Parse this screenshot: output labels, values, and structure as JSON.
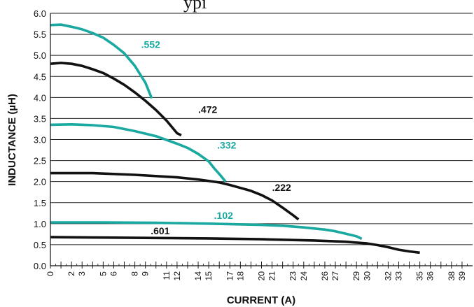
{
  "cut_title": "ypi",
  "chart_data": {
    "type": "line",
    "title": "",
    "xlabel": "CURRENT (A)",
    "ylabel": "INDUCTANCE (µH)",
    "xlim": [
      0,
      40
    ],
    "ylim": [
      0,
      6.0
    ],
    "grid": true,
    "yticks": [
      "0.0",
      "0.5",
      "1.0",
      "1.5",
      "2.0",
      "2.5",
      "3.0",
      "3.5",
      "4.0",
      "4.5",
      "5.0",
      "5.5",
      "6.0"
    ],
    "xticks": [
      "0",
      "1",
      "2",
      "3",
      "4",
      "5",
      "6",
      "7",
      "8",
      "9",
      "10",
      "11",
      "12",
      "13",
      "14",
      "15",
      "16",
      "17",
      "18",
      "19",
      "20",
      "21",
      "22",
      "23",
      "24",
      "25",
      "26",
      "27",
      "28",
      "29",
      "30",
      "31",
      "32",
      "33",
      "34",
      "35",
      "36",
      "37",
      "38",
      "39"
    ],
    "xtick_labels": [
      "0",
      "2",
      "3",
      "5",
      "6",
      "8",
      "9",
      "11",
      "12",
      "14",
      "15",
      "17",
      "18",
      "20",
      "21",
      "23",
      "24",
      "26",
      "27",
      "29",
      "30",
      "32",
      "33",
      "35",
      "36",
      "38",
      "39"
    ],
    "series": [
      {
        "name": ".552",
        "color": "#1aa9a0",
        "label_at": [
          8.6,
          5.18
        ],
        "points": [
          [
            0,
            5.72
          ],
          [
            1,
            5.73
          ],
          [
            2,
            5.68
          ],
          [
            3,
            5.62
          ],
          [
            4,
            5.53
          ],
          [
            5,
            5.42
          ],
          [
            6,
            5.25
          ],
          [
            7,
            5.05
          ],
          [
            8,
            4.75
          ],
          [
            9,
            4.35
          ],
          [
            9.6,
            3.98
          ]
        ]
      },
      {
        "name": ".472",
        "color": "#111111",
        "label_at": [
          14.0,
          3.63
        ],
        "points": [
          [
            0,
            4.8
          ],
          [
            1,
            4.82
          ],
          [
            2,
            4.8
          ],
          [
            3,
            4.75
          ],
          [
            4,
            4.67
          ],
          [
            5,
            4.58
          ],
          [
            6,
            4.45
          ],
          [
            7,
            4.3
          ],
          [
            8,
            4.12
          ],
          [
            9,
            3.92
          ],
          [
            10,
            3.7
          ],
          [
            11,
            3.45
          ],
          [
            12,
            3.15
          ],
          [
            12.4,
            3.1
          ]
        ]
      },
      {
        "name": ".332",
        "color": "#1aa9a0",
        "label_at": [
          15.8,
          2.78
        ],
        "points": [
          [
            0,
            3.35
          ],
          [
            2,
            3.36
          ],
          [
            4,
            3.34
          ],
          [
            6,
            3.3
          ],
          [
            8,
            3.2
          ],
          [
            10,
            3.08
          ],
          [
            12,
            2.9
          ],
          [
            13,
            2.8
          ],
          [
            14,
            2.66
          ],
          [
            15,
            2.48
          ],
          [
            15.5,
            2.32
          ],
          [
            16,
            2.18
          ],
          [
            16.6,
            2.0
          ]
        ]
      },
      {
        "name": ".222",
        "color": "#111111",
        "label_at": [
          21.0,
          1.78
        ],
        "points": [
          [
            0,
            2.2
          ],
          [
            4,
            2.2
          ],
          [
            8,
            2.16
          ],
          [
            12,
            2.1
          ],
          [
            14,
            2.05
          ],
          [
            16,
            1.98
          ],
          [
            17,
            1.92
          ],
          [
            18,
            1.85
          ],
          [
            19,
            1.78
          ],
          [
            20,
            1.68
          ],
          [
            21,
            1.55
          ],
          [
            22,
            1.38
          ],
          [
            23,
            1.2
          ],
          [
            23.5,
            1.1
          ]
        ]
      },
      {
        "name": ".102",
        "color": "#1aa9a0",
        "label_at": [
          15.5,
          1.11
        ],
        "points": [
          [
            0,
            1.03
          ],
          [
            5,
            1.03
          ],
          [
            10,
            1.02
          ],
          [
            15,
            1.0
          ],
          [
            20,
            0.97
          ],
          [
            22,
            0.95
          ],
          [
            24,
            0.91
          ],
          [
            26,
            0.86
          ],
          [
            27,
            0.82
          ],
          [
            28,
            0.76
          ],
          [
            29,
            0.7
          ],
          [
            29.5,
            0.64
          ]
        ]
      },
      {
        "name": ".601",
        "color": "#111111",
        "label_at": [
          9.5,
          0.75
        ],
        "points": [
          [
            0,
            0.68
          ],
          [
            5,
            0.67
          ],
          [
            10,
            0.66
          ],
          [
            15,
            0.65
          ],
          [
            20,
            0.63
          ],
          [
            25,
            0.6
          ],
          [
            28,
            0.57
          ],
          [
            30,
            0.53
          ],
          [
            31,
            0.49
          ],
          [
            32,
            0.44
          ],
          [
            33,
            0.38
          ],
          [
            34,
            0.34
          ],
          [
            35,
            0.31
          ]
        ]
      }
    ]
  }
}
